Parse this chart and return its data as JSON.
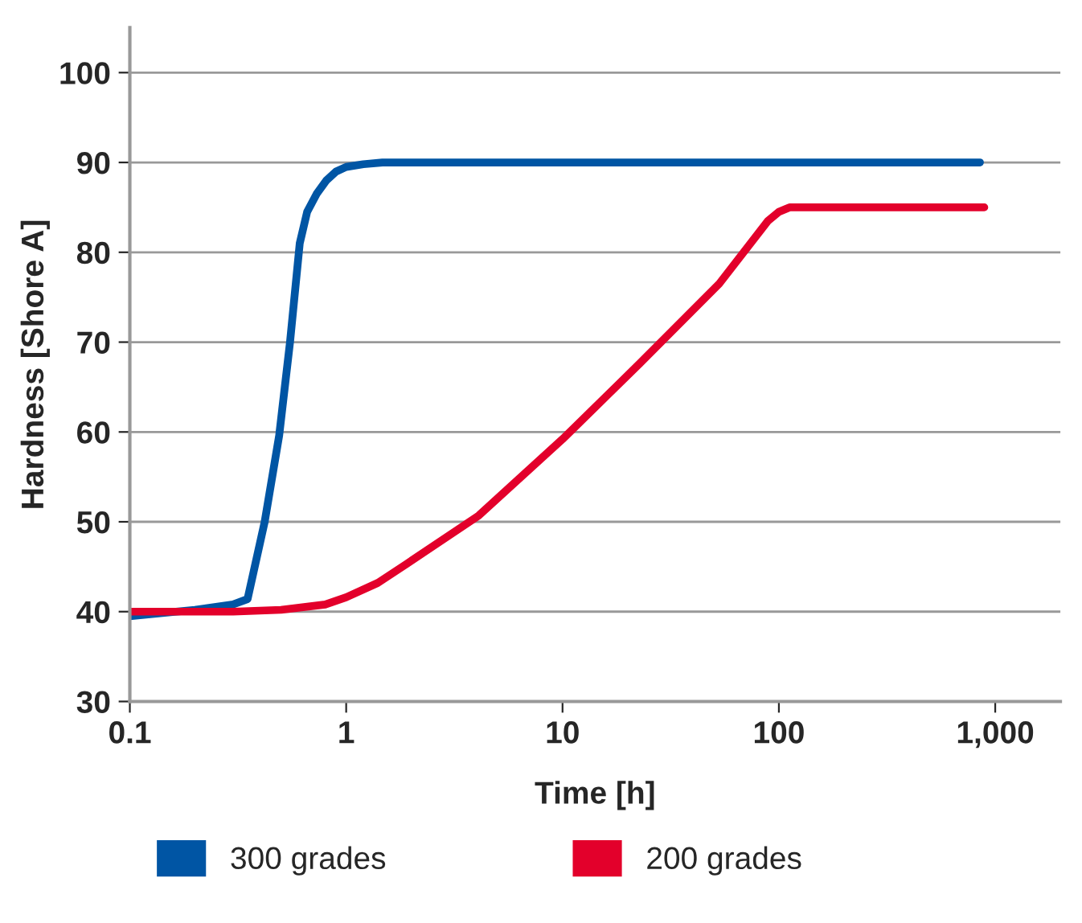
{
  "chart_data": {
    "type": "line",
    "xlabel": "Time [h]",
    "ylabel": "Hardness [Shore A]",
    "log": "x",
    "xlim": [
      0.1,
      2000
    ],
    "ylim": [
      30,
      105
    ],
    "xticks": [
      0.1,
      1,
      10,
      100,
      {
        "value": 1000,
        "label": "1,000"
      }
    ],
    "yticks": [
      30,
      40,
      50,
      60,
      70,
      80,
      90,
      100
    ],
    "grid": "y",
    "legend": "bottom",
    "marker": "none",
    "line_style": "solid",
    "series": [
      {
        "name": "300 grades",
        "color": "#0055a4",
        "x": [
          0.1,
          0.2,
          0.3,
          0.35,
          0.42,
          0.49,
          0.55,
          0.61,
          0.66,
          0.73,
          0.81,
          0.9,
          1,
          1.2,
          1.47,
          3,
          10,
          100,
          850
        ],
        "values": [
          39.5,
          40.2,
          40.8,
          41.4,
          50,
          59.6,
          70,
          81,
          84.5,
          86.5,
          88,
          89,
          89.5,
          89.8,
          90,
          90,
          90,
          90,
          90
        ]
      },
      {
        "name": "200 grades",
        "color": "#e3002b",
        "x": [
          0.1,
          0.3,
          0.5,
          0.8,
          1,
          1.4,
          1.9,
          4.1,
          10,
          22.7,
          53,
          89,
          100,
          112,
          890
        ],
        "values": [
          40,
          40,
          40.2,
          40.8,
          41.6,
          43.2,
          45.3,
          50.7,
          59.2,
          67.6,
          76.5,
          83.5,
          84.5,
          85,
          85
        ]
      }
    ]
  }
}
